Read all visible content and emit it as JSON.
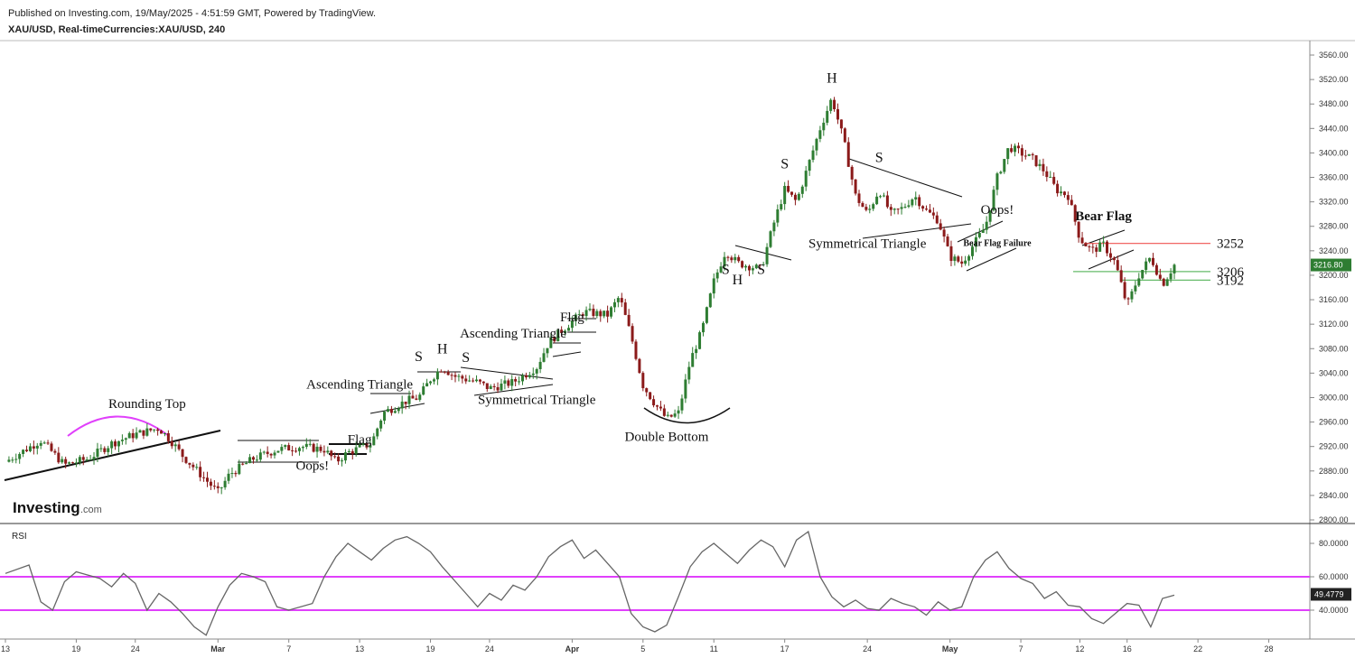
{
  "header": {
    "published": "Published on Investing.com, 19/May/2025 - 4:51:59 GMT, Powered by TradingView.",
    "symbol": "XAU/USD, Real-timeCurrencies:XAU/USD, 240"
  },
  "logo": {
    "text": "Investing",
    "suffix": ".com"
  },
  "colors": {
    "bull": "#2e7d32",
    "bear": "#8b1a1a",
    "rsi_band": "#e040fb",
    "resistance": "#ef5350",
    "support": "#66bb6a",
    "price_tag": "#2e7d32"
  },
  "chart_data": [
    {
      "type": "candlestick",
      "name": "XAU/USD 240",
      "ylim": [
        2800,
        3580
      ],
      "yticks": [
        "3560.00",
        "3520.00",
        "3480.00",
        "3440.00",
        "3400.00",
        "3360.00",
        "3320.00",
        "3280.00",
        "3240.00",
        "3200.00",
        "3160.00",
        "3120.00",
        "3080.00",
        "3040.00",
        "3000.00",
        "2960.00",
        "2920.00",
        "2880.00",
        "2840.00",
        "2800.00"
      ],
      "xticks": [
        "13",
        "19",
        "24",
        "Mar",
        "7",
        "13",
        "19",
        "24",
        "Apr",
        "5",
        "11",
        "17",
        "24",
        "May",
        "7",
        "12",
        "16",
        "22",
        "28"
      ],
      "x_range": [
        0,
        105
      ],
      "xtick_positions": [
        0,
        6,
        11,
        18,
        24,
        30,
        36,
        41,
        48,
        54,
        60,
        66,
        73,
        80,
        86,
        91,
        95,
        101,
        107
      ],
      "path": [
        [
          0,
          2895
        ],
        [
          3,
          2930
        ],
        [
          5,
          2890
        ],
        [
          7,
          2900
        ],
        [
          9,
          2925
        ],
        [
          11,
          2940
        ],
        [
          13,
          2950
        ],
        [
          14,
          2930
        ],
        [
          15,
          2905
        ],
        [
          17,
          2865
        ],
        [
          18,
          2845
        ],
        [
          19,
          2875
        ],
        [
          21,
          2900
        ],
        [
          23,
          2915
        ],
        [
          25,
          2920
        ],
        [
          27,
          2915
        ],
        [
          28,
          2895
        ],
        [
          29,
          2910
        ],
        [
          31,
          2925
        ],
        [
          32,
          2975
        ],
        [
          34,
          2995
        ],
        [
          35,
          3000
        ],
        [
          36,
          3030
        ],
        [
          37,
          3050
        ],
        [
          38,
          3035
        ],
        [
          40,
          3025
        ],
        [
          41,
          3015
        ],
        [
          43,
          3025
        ],
        [
          45,
          3050
        ],
        [
          46,
          3090
        ],
        [
          48,
          3125
        ],
        [
          49,
          3140
        ],
        [
          51,
          3135
        ],
        [
          52,
          3165
        ],
        [
          53,
          3100
        ],
        [
          54,
          3020
        ],
        [
          55,
          2990
        ],
        [
          56,
          2965
        ],
        [
          57,
          2975
        ],
        [
          58,
          3060
        ],
        [
          59,
          3110
        ],
        [
          60,
          3190
        ],
        [
          61,
          3240
        ],
        [
          62,
          3220
        ],
        [
          64,
          3210
        ],
        [
          65,
          3280
        ],
        [
          66,
          3340
        ],
        [
          67,
          3320
        ],
        [
          68,
          3380
        ],
        [
          69,
          3440
        ],
        [
          70,
          3490
        ],
        [
          71,
          3420
        ],
        [
          72,
          3330
        ],
        [
          73,
          3300
        ],
        [
          74,
          3340
        ],
        [
          75,
          3300
        ],
        [
          76,
          3310
        ],
        [
          77,
          3330
        ],
        [
          78,
          3305
        ],
        [
          79,
          3290
        ],
        [
          80,
          3230
        ],
        [
          81,
          3220
        ],
        [
          82,
          3250
        ],
        [
          83,
          3280
        ],
        [
          84,
          3360
        ],
        [
          85,
          3410
        ],
        [
          86,
          3400
        ],
        [
          87,
          3390
        ],
        [
          88,
          3370
        ],
        [
          89,
          3340
        ],
        [
          90,
          3330
        ],
        [
          91,
          3260
        ],
        [
          92,
          3240
        ],
        [
          93,
          3250
        ],
        [
          94,
          3220
        ],
        [
          95,
          3150
        ],
        [
          96,
          3200
        ],
        [
          97,
          3230
        ],
        [
          98,
          3185
        ],
        [
          99,
          3217
        ]
      ],
      "levels": [
        {
          "label": "3252",
          "value": 3252
        },
        {
          "label": "3206",
          "value": 3206
        },
        {
          "label": "3192",
          "value": 3192
        }
      ],
      "last_price": "3216.80",
      "annotations": [
        {
          "text": "Rounding Top",
          "x": 12,
          "y": 2983
        },
        {
          "text": "Oops!",
          "x": 26,
          "y": 2882
        },
        {
          "text": "Flag",
          "x": 30,
          "y": 2925
        },
        {
          "text": "Ascending Triangle",
          "x": 30,
          "y": 3015
        },
        {
          "text": "S",
          "x": 35,
          "y": 3060
        },
        {
          "text": "H",
          "x": 37,
          "y": 3072
        },
        {
          "text": "S",
          "x": 39,
          "y": 3058
        },
        {
          "text": "Ascending Triangle",
          "x": 43,
          "y": 3098
        },
        {
          "text": "Symmetrical Triangle",
          "x": 45,
          "y": 2990
        },
        {
          "text": "Flag",
          "x": 48,
          "y": 3125
        },
        {
          "text": "Double Bottom",
          "x": 56,
          "y": 2929
        },
        {
          "text": "S",
          "x": 61,
          "y": 3202
        },
        {
          "text": "H",
          "x": 62,
          "y": 3185
        },
        {
          "text": "S",
          "x": 64,
          "y": 3202
        },
        {
          "text": "S",
          "x": 66,
          "y": 3375
        },
        {
          "text": "H",
          "x": 70,
          "y": 3515
        },
        {
          "text": "S",
          "x": 74,
          "y": 3385
        },
        {
          "text": "Symmetrical Triangle",
          "x": 73,
          "y": 3245
        },
        {
          "text": "Oops!",
          "x": 84,
          "y": 3300
        },
        {
          "text": "Bear Flag Failure",
          "x": 84,
          "y": 3248
        },
        {
          "text": "Bear Flag",
          "x": 93,
          "y": 3290
        }
      ]
    },
    {
      "type": "line",
      "name": "RSI",
      "title": "RSI",
      "ylim": [
        20,
        90
      ],
      "yticks": [
        "80.0000",
        "60.0000",
        "40.0000"
      ],
      "bands": [
        60,
        40
      ],
      "last_value": "49.4779",
      "x": [
        0,
        2,
        3,
        4,
        5,
        6,
        8,
        9,
        10,
        11,
        12,
        13,
        14,
        15,
        16,
        17,
        18,
        19,
        20,
        21,
        22,
        23,
        24,
        26,
        27,
        28,
        29,
        30,
        31,
        32,
        33,
        34,
        35,
        36,
        37,
        38,
        39,
        40,
        41,
        42,
        43,
        44,
        45,
        46,
        47,
        48,
        49,
        50,
        51,
        52,
        53,
        54,
        55,
        56,
        57,
        58,
        59,
        60,
        61,
        62,
        63,
        64,
        65,
        66,
        67,
        68,
        69,
        70,
        71,
        72,
        73,
        74,
        75,
        76,
        77,
        78,
        79,
        80,
        81,
        82,
        83,
        84,
        85,
        86,
        87,
        88,
        89,
        90,
        91,
        92,
        93,
        94,
        95,
        96,
        97,
        98,
        99
      ],
      "values": [
        62,
        67,
        45,
        40,
        57,
        63,
        59,
        54,
        62,
        56,
        40,
        50,
        45,
        38,
        30,
        25,
        42,
        55,
        62,
        60,
        57,
        42,
        40,
        44,
        60,
        72,
        80,
        75,
        70,
        77,
        82,
        84,
        80,
        75,
        66,
        58,
        50,
        42,
        50,
        46,
        55,
        52,
        60,
        72,
        78,
        82,
        71,
        76,
        68,
        60,
        38,
        30,
        27,
        31,
        48,
        66,
        75,
        80,
        74,
        68,
        76,
        82,
        78,
        66,
        82,
        87,
        60,
        48,
        42,
        46,
        41,
        40,
        47,
        44,
        42,
        37,
        45,
        40,
        42,
        60,
        70,
        75,
        65,
        59,
        56,
        47,
        51,
        43,
        42,
        35,
        32,
        38,
        44,
        43,
        30,
        47,
        49
      ]
    }
  ]
}
